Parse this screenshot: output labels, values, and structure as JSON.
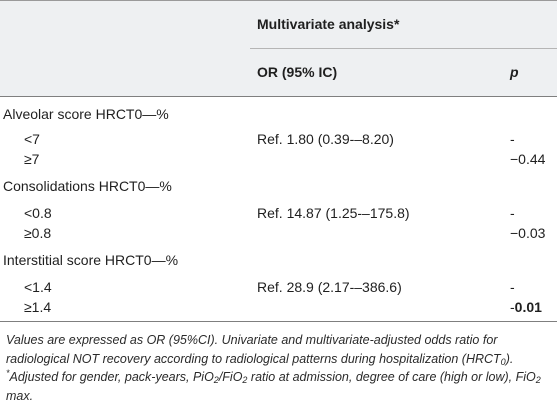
{
  "table": {
    "group_header": "Multivariate analysis*",
    "col_or": "OR (95% IC)",
    "col_p": "p",
    "sections": [
      {
        "label": "Alveolar score HRCT0—%",
        "rows": [
          {
            "level": "<7",
            "or": "Ref. 1.80 (0.39-–8.20)",
            "p": "-"
          },
          {
            "level": "≥7",
            "or": "",
            "p": "−0.44"
          }
        ]
      },
      {
        "label": "Consolidations HRCT0—%",
        "rows": [
          {
            "level": "<0.8",
            "or": "Ref. 14.87 (1.25-–175.8)",
            "p": "-"
          },
          {
            "level": "≥0.8",
            "or": "",
            "p": "−0.03"
          }
        ]
      },
      {
        "label": "Interstitial score HRCT0—%",
        "rows": [
          {
            "level": "<1.4",
            "or": "Ref. 28.9 (2.17-–386.6)",
            "p": "-"
          },
          {
            "level": "≥1.4",
            "or": "",
            "p_minus": "-",
            "p_bold": "0.01"
          }
        ]
      }
    ]
  },
  "footnote": {
    "part1": "Values are expressed as OR (95%CI). Univariate and multivariate-adjusted odds ratio for radiological NOT recovery according to radiological patterns during hospitalization (HRCT",
    "sub1": "0",
    "part2": "). ",
    "sup1": "*",
    "part3": "Adjusted for gender, pack-years, PiO",
    "sub2": "2",
    "part4": "/FiO",
    "sub3": "2",
    "part5": " ratio at admission, degree of care (high or low), FiO",
    "sub4": "2",
    "part6": " max."
  }
}
